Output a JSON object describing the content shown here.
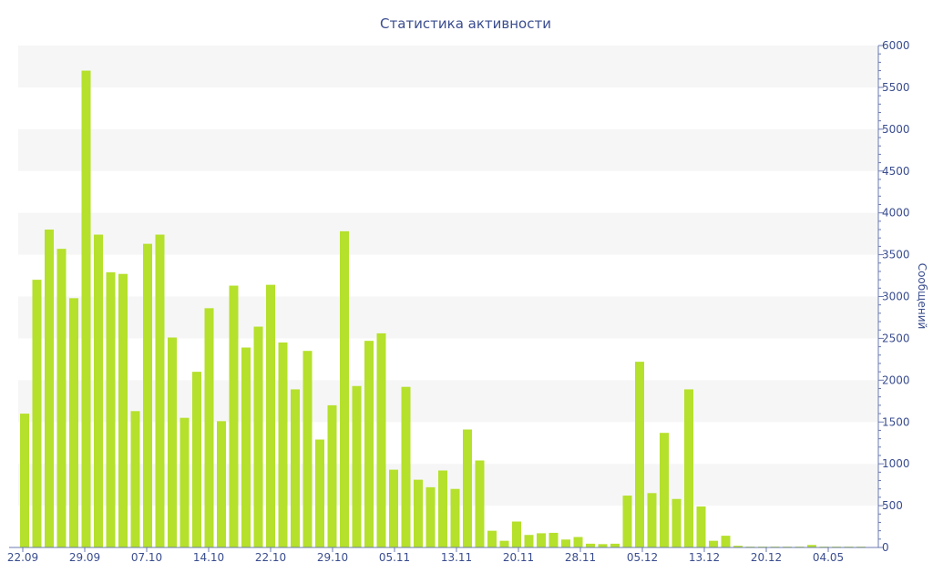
{
  "chart_data": {
    "type": "bar",
    "title": "Статистика активности",
    "ylabel": "Сообщений",
    "xlabel": "",
    "ylim": [
      0,
      6000
    ],
    "yticks": [
      0,
      500,
      1000,
      1500,
      2000,
      2500,
      3000,
      3500,
      4000,
      4500,
      5000,
      5500,
      6000
    ],
    "x_tick_labels": [
      "22.09",
      "29.09",
      "07.10",
      "14.10",
      "22.10",
      "29.10",
      "05.11",
      "13.11",
      "20.11",
      "28.11",
      "05.12",
      "13.12",
      "20.12",
      "04.05"
    ],
    "grid": "alternating horizontal bands",
    "bar_color": "#b5e02c",
    "band_color": "#f6f6f6",
    "text_color": "#3a4d8f",
    "values": [
      1600,
      3200,
      3800,
      3570,
      2980,
      5700,
      3740,
      3290,
      3270,
      1630,
      3630,
      3740,
      2510,
      1550,
      2100,
      2860,
      1510,
      3130,
      2390,
      2640,
      3140,
      2450,
      1890,
      2350,
      1290,
      1700,
      3780,
      1930,
      2470,
      2560,
      930,
      1920,
      810,
      720,
      920,
      700,
      1410,
      1040,
      200,
      80,
      310,
      150,
      170,
      175,
      95,
      125,
      45,
      40,
      45,
      620,
      2220,
      650,
      1370,
      580,
      1890,
      490,
      80,
      140,
      20,
      10,
      10,
      10,
      10,
      10,
      30,
      10,
      10,
      10,
      10
    ]
  }
}
